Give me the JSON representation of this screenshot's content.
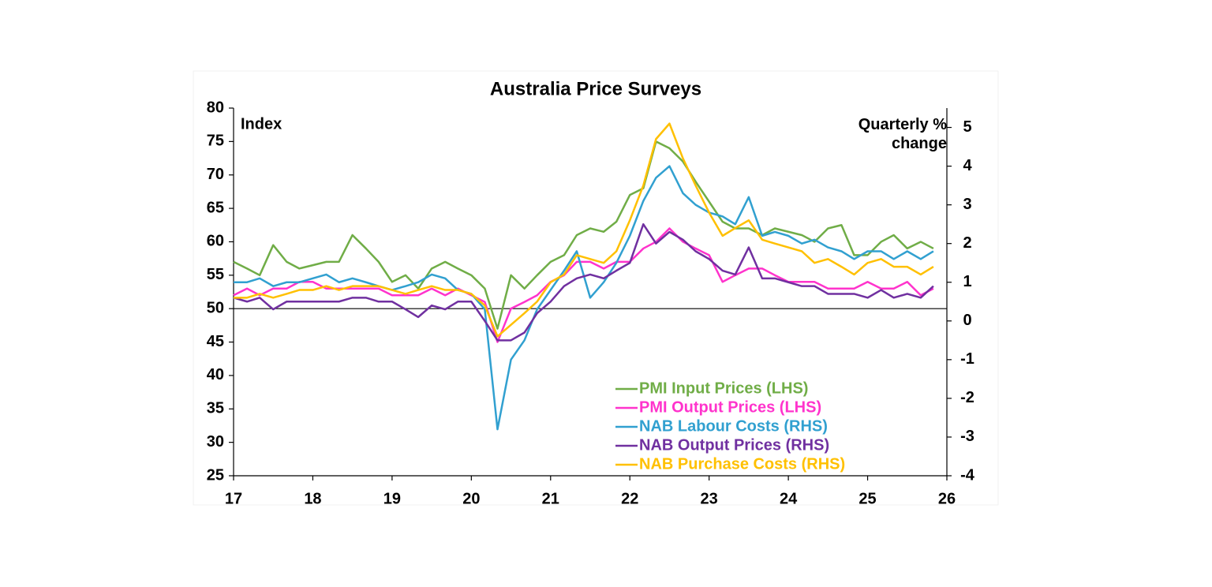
{
  "chart_data": {
    "type": "line",
    "title": "Australia Price Surveys",
    "y_label": "Index",
    "y2_label": "Quarterly % change",
    "x": [
      17,
      17.17,
      17.33,
      17.5,
      17.67,
      17.83,
      18,
      18.17,
      18.33,
      18.5,
      18.67,
      18.83,
      19,
      19.17,
      19.33,
      19.5,
      19.67,
      19.83,
      20,
      20.17,
      20.33,
      20.5,
      20.67,
      20.83,
      21,
      21.17,
      21.33,
      21.5,
      21.67,
      21.83,
      22,
      22.17,
      22.33,
      22.5,
      22.67,
      22.83,
      23,
      23.17,
      23.33,
      23.5,
      23.67,
      23.83,
      24,
      24.17,
      24.33,
      24.5,
      24.67,
      24.83,
      25,
      25.17,
      25.33,
      25.5,
      25.67,
      25.83
    ],
    "xlim": [
      17,
      26
    ],
    "xticks": [
      17,
      18,
      19,
      20,
      21,
      22,
      23,
      24,
      25,
      26
    ],
    "ylim": [
      25,
      80
    ],
    "yticks": [
      25,
      30,
      35,
      40,
      45,
      50,
      55,
      60,
      65,
      70,
      75,
      80
    ],
    "y2lim": [
      -4,
      5.5
    ],
    "y2ticks": [
      -4,
      -3,
      -2,
      -1,
      0,
      1,
      2,
      3,
      4,
      5
    ],
    "x_axis_at": 50,
    "legend": "lower-right",
    "series": [
      {
        "name": "PMI Input Prices (LHS)",
        "color": "#70ad47",
        "axis": "y",
        "values": [
          57,
          56,
          55,
          59.5,
          57,
          56,
          56.5,
          57,
          57,
          61,
          59,
          57,
          54,
          55,
          53,
          56,
          57,
          56,
          55,
          53,
          47,
          55,
          53,
          55,
          57,
          58,
          61,
          62,
          61.5,
          63,
          67,
          68,
          75,
          74,
          72,
          69,
          66,
          63,
          62,
          62,
          61,
          62,
          61.5,
          61,
          60,
          62,
          62.5,
          58,
          58,
          60,
          61,
          59,
          60,
          59
        ]
      },
      {
        "name": "PMI Output Prices (LHS)",
        "color": "#ff33cc",
        "axis": "y",
        "values": [
          52,
          53,
          52,
          53,
          53,
          54,
          54,
          53,
          53,
          53,
          53,
          53,
          52,
          52,
          52,
          53,
          52,
          53,
          52,
          51,
          45,
          50,
          51,
          52,
          54,
          55,
          57,
          57,
          56,
          57,
          57,
          59,
          60,
          62,
          60,
          59,
          58,
          54,
          55,
          56,
          56,
          55,
          54,
          54,
          54,
          53,
          53,
          53,
          54,
          53,
          53,
          54,
          52,
          53
        ]
      },
      {
        "name": "NAB Labour Costs (RHS)",
        "color": "#31a0d0",
        "axis": "y2",
        "values": [
          1.0,
          1.0,
          1.1,
          0.9,
          1.0,
          1.0,
          1.1,
          1.2,
          1.0,
          1.1,
          1.0,
          0.9,
          0.8,
          0.9,
          1.0,
          1.2,
          1.1,
          0.8,
          0.7,
          0.3,
          -2.8,
          -1.0,
          -0.5,
          0.3,
          0.8,
          1.3,
          1.8,
          0.6,
          1.0,
          1.5,
          2.2,
          3.1,
          3.7,
          4.0,
          3.3,
          3.0,
          2.8,
          2.7,
          2.5,
          3.2,
          2.2,
          2.3,
          2.2,
          2.0,
          2.1,
          1.9,
          1.8,
          1.6,
          1.8,
          1.8,
          1.6,
          1.8,
          1.6,
          1.8
        ]
      },
      {
        "name": "NAB Output Prices (RHS)",
        "color": "#7030a0",
        "axis": "y2",
        "values": [
          0.6,
          0.5,
          0.6,
          0.3,
          0.5,
          0.5,
          0.5,
          0.5,
          0.5,
          0.6,
          0.6,
          0.5,
          0.5,
          0.3,
          0.1,
          0.4,
          0.3,
          0.5,
          0.5,
          0.0,
          -0.5,
          -0.5,
          -0.3,
          0.2,
          0.5,
          0.9,
          1.1,
          1.2,
          1.1,
          1.3,
          1.5,
          2.5,
          2.0,
          2.3,
          2.1,
          1.8,
          1.6,
          1.3,
          1.2,
          1.9,
          1.1,
          1.1,
          1.0,
          0.9,
          0.9,
          0.7,
          0.7,
          0.7,
          0.6,
          0.8,
          0.6,
          0.7,
          0.6,
          0.9
        ]
      },
      {
        "name": "NAB Purchase Costs (RHS)",
        "color": "#ffc000",
        "axis": "y2",
        "values": [
          0.6,
          0.6,
          0.7,
          0.6,
          0.7,
          0.8,
          0.8,
          0.9,
          0.8,
          0.9,
          0.9,
          0.9,
          0.8,
          0.7,
          0.8,
          0.9,
          0.8,
          0.8,
          0.7,
          0.4,
          -0.4,
          -0.1,
          0.2,
          0.5,
          1.0,
          1.2,
          1.7,
          1.6,
          1.5,
          1.8,
          2.6,
          3.5,
          4.7,
          5.1,
          4.2,
          3.5,
          2.8,
          2.2,
          2.4,
          2.6,
          2.1,
          2.0,
          1.9,
          1.8,
          1.5,
          1.6,
          1.4,
          1.2,
          1.5,
          1.6,
          1.4,
          1.4,
          1.2,
          1.4
        ]
      }
    ]
  }
}
